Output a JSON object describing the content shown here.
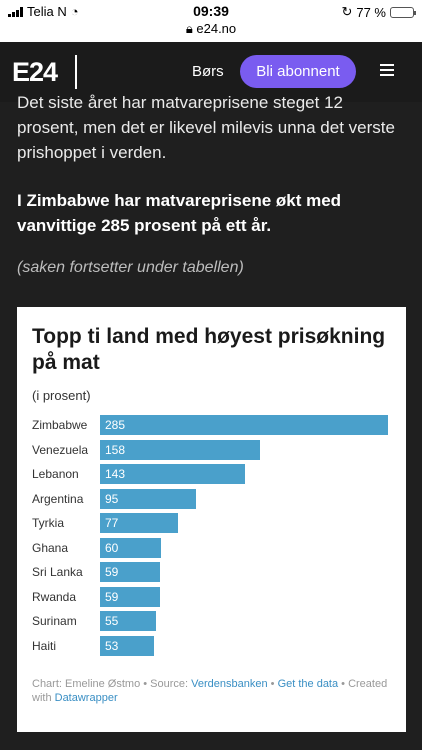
{
  "status": {
    "carrier": "Telia N",
    "time": "09:39",
    "url": "e24.no",
    "battery": "77 %",
    "battery_level": 77
  },
  "header": {
    "logo": "E24",
    "nav_bors": "Børs",
    "cta": "Bli abonnent"
  },
  "article": {
    "p1": "Det siste året har matvareprisene steget 12 prosent, men det er likevel milevis unna det verste prishoppet i verden.",
    "p2": "I Zimbabwe har matvareprisene økt med vanvittige 285 prosent på ett år.",
    "p3": "(saken fortsetter under tabellen)"
  },
  "chart_data": {
    "type": "bar",
    "orientation": "horizontal",
    "title": "Topp ti land med høyest prisøkning på mat",
    "subtitle": "(i prosent)",
    "categories": [
      "Zimbabwe",
      "Venezuela",
      "Lebanon",
      "Argentina",
      "Tyrkia",
      "Ghana",
      "Sri Lanka",
      "Rwanda",
      "Surinam",
      "Haiti"
    ],
    "values": [
      285,
      158,
      143,
      95,
      77,
      60,
      59,
      59,
      55,
      53
    ],
    "xlim": [
      0,
      285
    ],
    "grid": false,
    "bar_color": "#4aa0cb"
  },
  "footer": {
    "prefix": "Chart: Emeline Østmo • Source: ",
    "source": "Verdensbanken",
    "sep": " • ",
    "get_data": "Get the data",
    "created": " • Created with ",
    "datawrapper": "Datawrapper"
  }
}
